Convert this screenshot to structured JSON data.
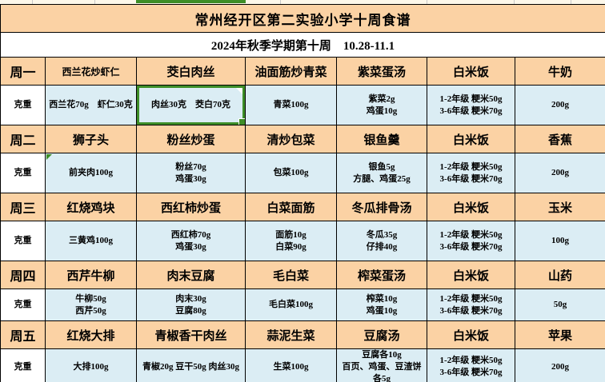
{
  "title": "常州经开区第二实验小学十周食谱",
  "subtitle": "2024年秋季学期第十周　10.28-11.1",
  "weight_label": "克重",
  "colors": {
    "header_bg": "#fbd2a4",
    "weight_bg": "#dbedf4",
    "selection_green": "#3e8e28"
  },
  "days": [
    {
      "label": "周一",
      "dishes": [
        "西兰花炒虾仁",
        "茭白肉丝",
        "油面筋炒青菜",
        "紫菜蛋汤",
        "白米饭",
        "牛奶"
      ],
      "weights": [
        "西兰花70g　虾仁30克",
        "肉丝30克　茭白70克",
        "青菜100g",
        "紫菜2g\n鸡蛋10g",
        "1-2年级  粳米50g\n3-6年级  粳米70g",
        "200g"
      ]
    },
    {
      "label": "周二",
      "dishes": [
        "狮子头",
        "粉丝炒蛋",
        "清炒包菜",
        "银鱼羹",
        "白米饭",
        "香蕉"
      ],
      "weights": [
        "前夹肉100g",
        "粉丝70g\n鸡蛋30g",
        "包菜100g",
        "银鱼5g\n方腿、鸡蛋25g",
        "1-2年级  粳米50g\n3-6年级  粳米70g",
        "200g"
      ]
    },
    {
      "label": "周三",
      "dishes": [
        "红烧鸡块",
        "西红柿炒蛋",
        "白菜面筋",
        "冬瓜排骨汤",
        "白米饭",
        "玉米"
      ],
      "weights": [
        "三黄鸡100g",
        "西红柿70g\n鸡蛋30g",
        "面筋10g\n白菜90g",
        "冬瓜35g\n仔排40g",
        "1-2年级  粳米50g\n3-6年级  粳米70g",
        "100g"
      ]
    },
    {
      "label": "周四",
      "dishes": [
        "西芹牛柳",
        "肉末豆腐",
        "毛白菜",
        "榨菜蛋汤",
        "白米饭",
        "山药"
      ],
      "weights": [
        "牛柳50g\n西芹50g",
        "肉末30g\n豆腐80g",
        "毛白菜100g",
        "榨菜10g\n鸡蛋10g",
        "1-2年级  粳米50g\n3-6年级  粳米70g",
        "50g"
      ]
    },
    {
      "label": "周五",
      "dishes": [
        "红烧大排",
        "青椒香干肉丝",
        "蒜泥生菜",
        "豆腐汤",
        "白米饭",
        "苹果"
      ],
      "weights": [
        "大排100g",
        "青椒20g  豆干50g  肉丝30g",
        "生菜100g",
        "豆腐各10g\n百页、鸡蛋、豆渣饼\n各5g",
        "1-2年级  粳米50g\n3-6年级  粳米70g",
        "200g"
      ]
    }
  ],
  "selection": {
    "selected_cell_text": "肉丝30克　茭白70克",
    "selected_column_dish": "茭白肉丝"
  }
}
